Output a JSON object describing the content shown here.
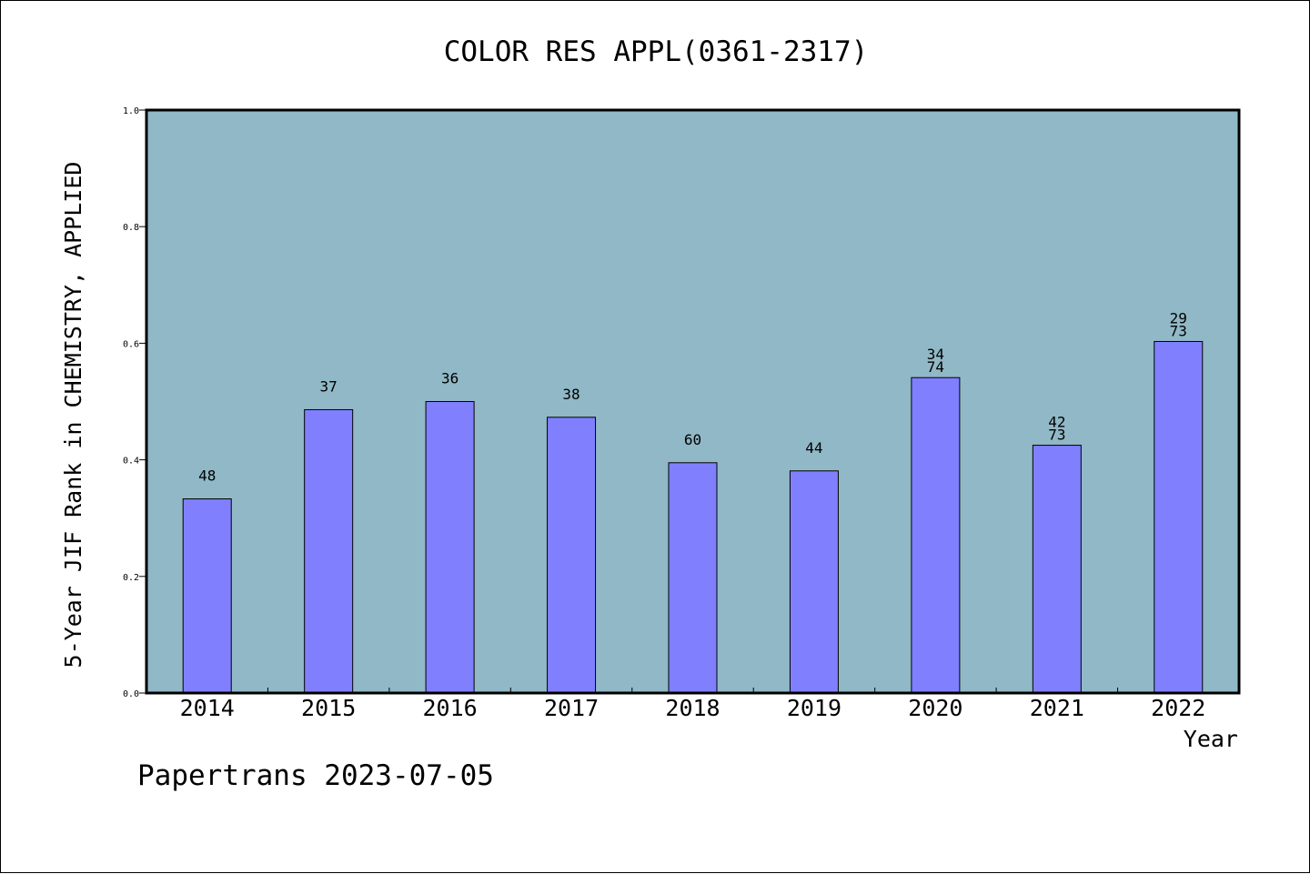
{
  "chart_data": {
    "type": "bar",
    "title": "COLOR RES APPL(0361-2317)",
    "xlabel": "Year",
    "ylabel": "5-Year JIF Rank in CHEMISTRY, APPLIED",
    "categories": [
      "2014",
      "2015",
      "2016",
      "2017",
      "2018",
      "2019",
      "2020",
      "2021",
      "2022"
    ],
    "values": [
      0.333,
      0.486,
      0.5,
      0.473,
      0.395,
      0.381,
      0.541,
      0.425,
      0.603
    ],
    "data_labels": [
      [
        "48"
      ],
      [
        "37"
      ],
      [
        "36"
      ],
      [
        "38"
      ],
      [
        "60"
      ],
      [
        "44"
      ],
      [
        "34",
        "74"
      ],
      [
        "42",
        "73"
      ],
      [
        "29",
        "73"
      ]
    ],
    "yticks": [
      "0.0",
      "0.2",
      "0.4",
      "0.6",
      "0.8",
      "1.0"
    ],
    "ylim": [
      0,
      1.0
    ],
    "grid": false,
    "legend": "none",
    "colors": {
      "plot_background": "#90b8c6",
      "bar_fill": "#8080ff",
      "bar_stroke": "#000000"
    }
  },
  "footer": {
    "text": "Papertrans 2023-07-05"
  }
}
